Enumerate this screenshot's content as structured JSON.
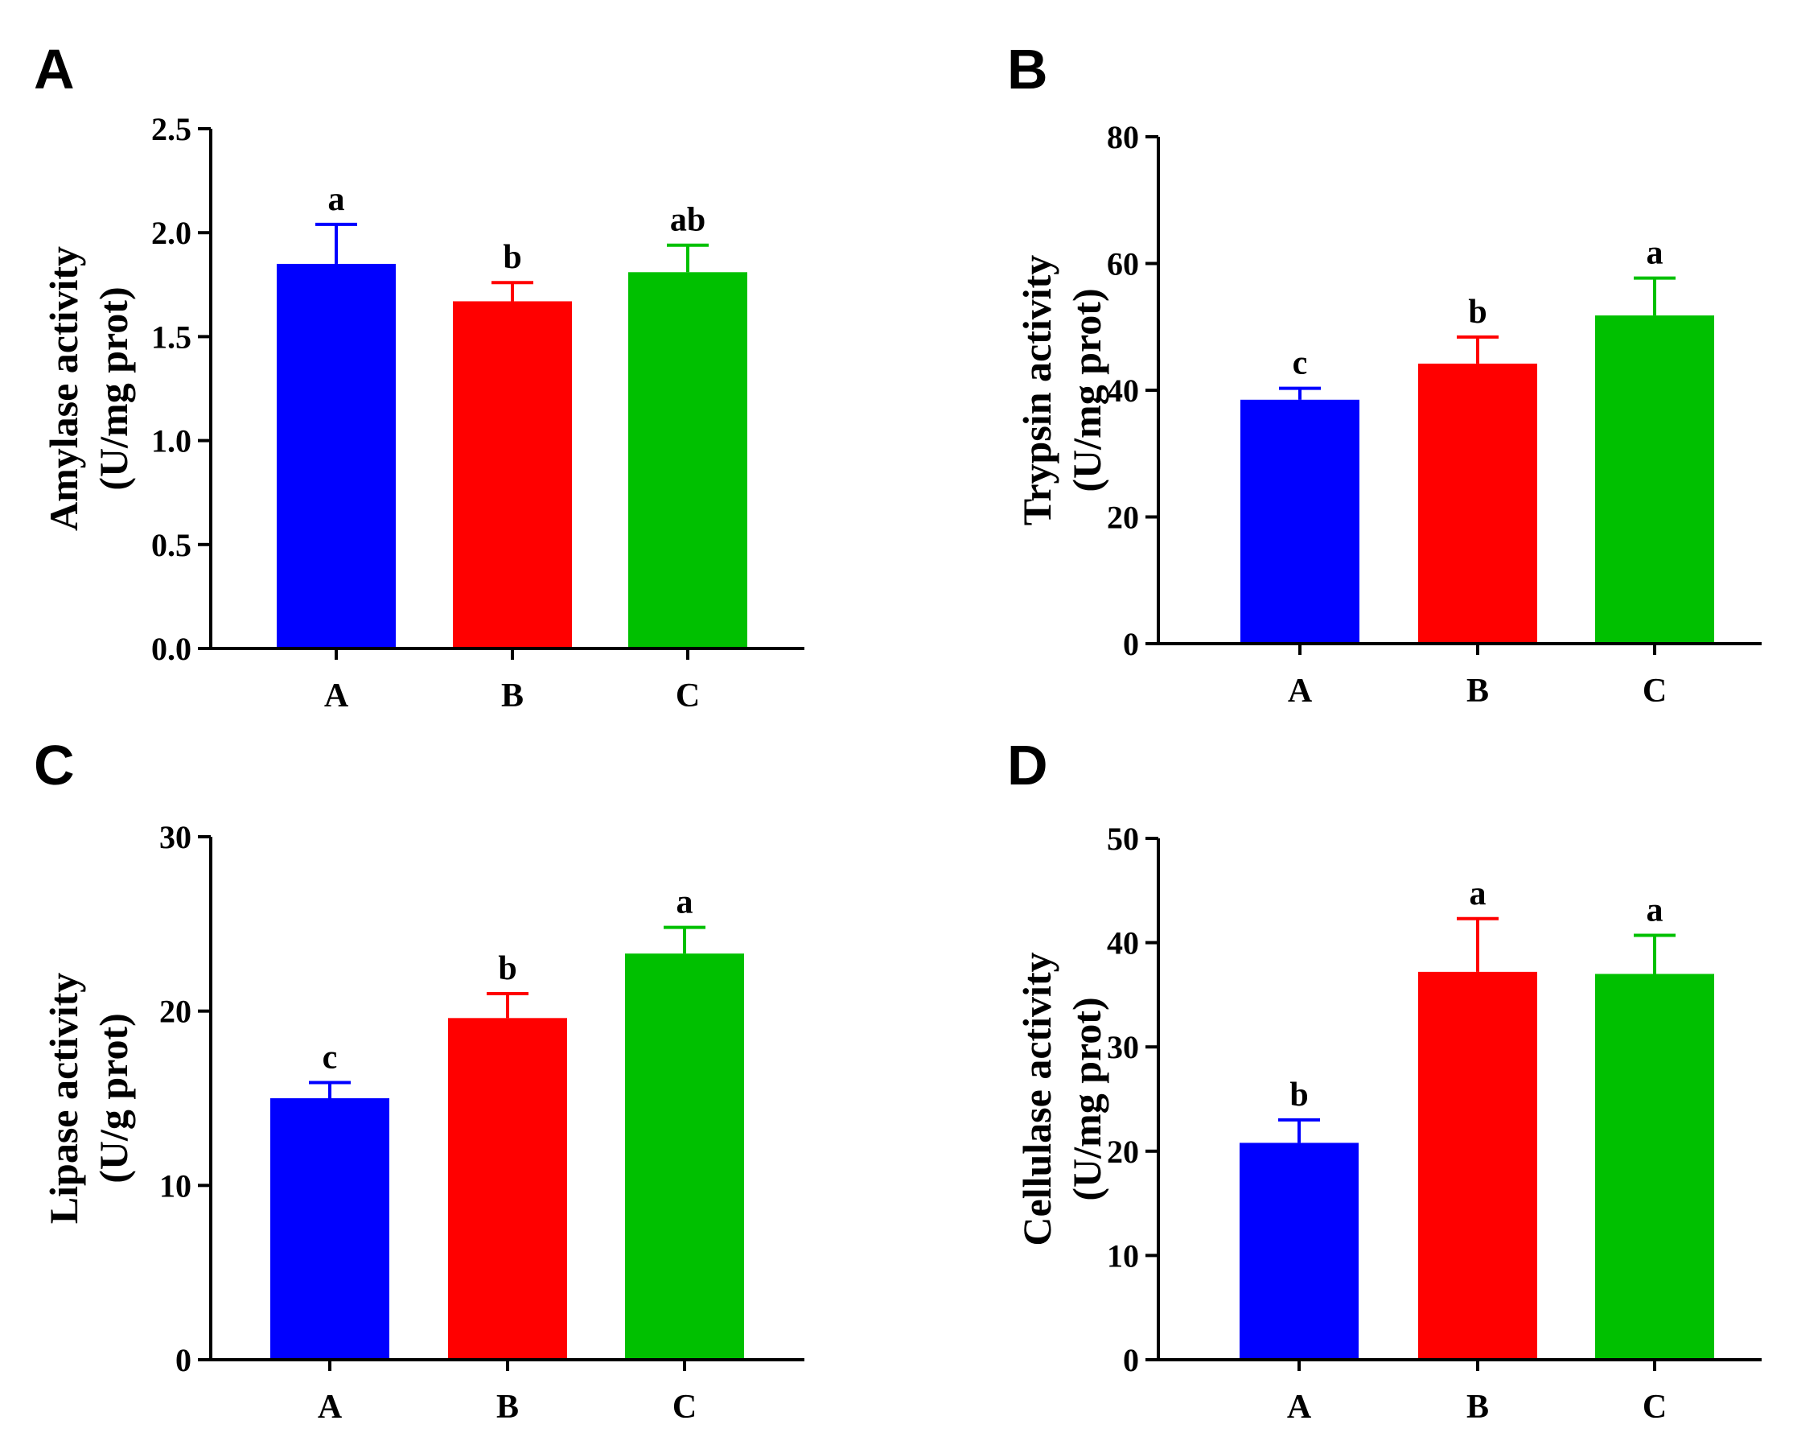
{
  "figure": {
    "panels": [
      "A",
      "B",
      "C",
      "D"
    ]
  },
  "chart_data": [
    {
      "type": "bar",
      "panel": "A",
      "categories": [
        "A",
        "B",
        "C"
      ],
      "values": [
        1.85,
        1.67,
        1.81
      ],
      "errors": [
        0.19,
        0.09,
        0.13
      ],
      "significance": [
        "a",
        "b",
        "ab"
      ],
      "colors": [
        "#0000ff",
        "#ff0000",
        "#00c000"
      ],
      "ylabel_line1": "Amylase activity",
      "ylabel_line2": "(U/mg prot)",
      "ylim": [
        0,
        2.5
      ],
      "yticks": [
        "0.0",
        "0.5",
        "1.0",
        "1.5",
        "2.0",
        "2.5"
      ],
      "ytick_values": [
        0,
        0.5,
        1.0,
        1.5,
        2.0,
        2.5
      ]
    },
    {
      "type": "bar",
      "panel": "B",
      "categories": [
        "A",
        "B",
        "C"
      ],
      "values": [
        38.5,
        44.2,
        51.8
      ],
      "errors": [
        1.8,
        4.2,
        5.9
      ],
      "significance": [
        "c",
        "b",
        "a"
      ],
      "colors": [
        "#0000ff",
        "#ff0000",
        "#00c000"
      ],
      "ylabel_line1": "Trypsin activity",
      "ylabel_line2": "(U/mg prot)",
      "ylim": [
        0,
        80
      ],
      "yticks": [
        "0",
        "20",
        "40",
        "60",
        "80"
      ],
      "ytick_values": [
        0,
        20,
        40,
        60,
        80
      ]
    },
    {
      "type": "bar",
      "panel": "C",
      "categories": [
        "A",
        "B",
        "C"
      ],
      "values": [
        15.0,
        19.6,
        23.3
      ],
      "errors": [
        0.9,
        1.4,
        1.5
      ],
      "significance": [
        "c",
        "b",
        "a"
      ],
      "colors": [
        "#0000ff",
        "#ff0000",
        "#00c000"
      ],
      "ylabel_line1": "Lipase activity",
      "ylabel_line2": "(U/g prot)",
      "ylim": [
        0,
        30
      ],
      "yticks": [
        "0",
        "10",
        "20",
        "30"
      ],
      "ytick_values": [
        0,
        10,
        20,
        30
      ]
    },
    {
      "type": "bar",
      "panel": "D",
      "categories": [
        "A",
        "B",
        "C"
      ],
      "values": [
        20.8,
        37.2,
        37.0
      ],
      "errors": [
        2.2,
        5.1,
        3.7
      ],
      "significance": [
        "b",
        "a",
        "a"
      ],
      "colors": [
        "#0000ff",
        "#ff0000",
        "#00c000"
      ],
      "ylabel_line1": "Cellulase activity",
      "ylabel_line2": "(U/mg prot)",
      "ylim": [
        0,
        50
      ],
      "yticks": [
        "0",
        "10",
        "20",
        "30",
        "40",
        "50"
      ],
      "ytick_values": [
        0,
        10,
        20,
        30,
        40,
        50
      ]
    }
  ]
}
